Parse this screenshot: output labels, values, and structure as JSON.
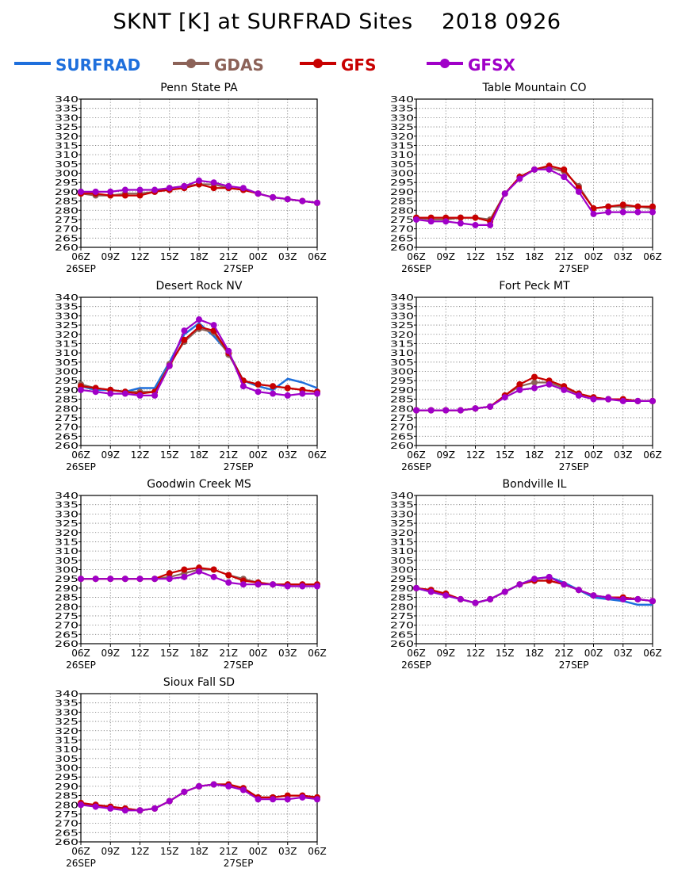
{
  "page": {
    "title": "SKNT [K] at SURFRAD Sites    2018 0926"
  },
  "legend": [
    {
      "name": "SURFRAD",
      "color": "#1e6fdc",
      "marker": false
    },
    {
      "name": "GDAS",
      "color": "#8c6258",
      "marker": true
    },
    {
      "name": "GFS",
      "color": "#c80000",
      "marker": true
    },
    {
      "name": "GFSX",
      "color": "#a000c8",
      "marker": true
    }
  ],
  "chart_data": [
    {
      "type": "line",
      "title": "Penn State PA",
      "x_ticks": [
        "06Z",
        "09Z",
        "12Z",
        "15Z",
        "18Z",
        "21Z",
        "00Z",
        "03Z",
        "06Z"
      ],
      "date_labels": [
        "26SEP",
        "27SEP"
      ],
      "ylim": [
        260,
        340
      ],
      "y_ticks": [
        260,
        265,
        270,
        275,
        280,
        285,
        290,
        295,
        300,
        305,
        310,
        315,
        320,
        325,
        330,
        335,
        340
      ],
      "grid": true,
      "x_hours": [
        0,
        1.5,
        3,
        4.5,
        6,
        7.5,
        9,
        10.5,
        12,
        13.5,
        15,
        16.5,
        18,
        19.5,
        21,
        22.5,
        24
      ],
      "series": [
        {
          "name": "SURFRAD",
          "values": []
        },
        {
          "name": "GDAS",
          "values": [
            289,
            288,
            288,
            289,
            289,
            290,
            292,
            293,
            294,
            294,
            292,
            291,
            289,
            287,
            286,
            285,
            284
          ]
        },
        {
          "name": "GFS",
          "values": [
            289,
            289,
            288,
            288,
            288,
            290,
            291,
            292,
            294,
            292,
            292,
            291,
            289,
            287,
            286,
            285,
            284
          ]
        },
        {
          "name": "GFSX",
          "values": [
            290,
            290,
            290,
            291,
            291,
            291,
            292,
            293,
            296,
            295,
            293,
            292,
            289,
            287,
            286,
            285,
            284
          ]
        }
      ]
    },
    {
      "type": "line",
      "title": "Table Mountain CO",
      "x_ticks": [
        "06Z",
        "09Z",
        "12Z",
        "15Z",
        "18Z",
        "21Z",
        "00Z",
        "03Z",
        "06Z"
      ],
      "date_labels": [
        "26SEP",
        "27SEP"
      ],
      "ylim": [
        260,
        340
      ],
      "y_ticks": [
        260,
        265,
        270,
        275,
        280,
        285,
        290,
        295,
        300,
        305,
        310,
        315,
        320,
        325,
        330,
        335,
        340
      ],
      "grid": true,
      "x_hours": [
        0,
        1.5,
        3,
        4.5,
        6,
        7.5,
        9,
        10.5,
        12,
        13.5,
        15,
        16.5,
        18,
        19.5,
        21,
        22.5,
        24
      ],
      "series": [
        {
          "name": "SURFRAD",
          "values": []
        },
        {
          "name": "GDAS",
          "values": [
            276,
            275,
            275,
            276,
            276,
            275,
            289,
            298,
            302,
            303,
            301,
            293,
            281,
            282,
            282,
            282,
            281
          ]
        },
        {
          "name": "GFS",
          "values": [
            276,
            276,
            276,
            276,
            276,
            274,
            289,
            298,
            302,
            304,
            302,
            292,
            281,
            282,
            283,
            282,
            282
          ]
        },
        {
          "name": "GFSX",
          "values": [
            275,
            274,
            274,
            273,
            272,
            272,
            289,
            297,
            302,
            302,
            298,
            290,
            278,
            279,
            279,
            279,
            279
          ]
        }
      ]
    },
    {
      "type": "line",
      "title": "Desert Rock NV",
      "x_ticks": [
        "06Z",
        "09Z",
        "12Z",
        "15Z",
        "18Z",
        "21Z",
        "00Z",
        "03Z",
        "06Z"
      ],
      "date_labels": [
        "26SEP",
        "27SEP"
      ],
      "ylim": [
        260,
        340
      ],
      "y_ticks": [
        260,
        265,
        270,
        275,
        280,
        285,
        290,
        295,
        300,
        305,
        310,
        315,
        320,
        325,
        330,
        335,
        340
      ],
      "grid": true,
      "x_hours": [
        0,
        1.5,
        3,
        4.5,
        6,
        7.5,
        9,
        10.5,
        12,
        13.5,
        15,
        16.5,
        18,
        19.5,
        21,
        22.5,
        24
      ],
      "series": [
        {
          "name": "SURFRAD",
          "values": [
            292,
            290,
            290,
            289,
            291,
            291,
            305,
            320,
            326,
            319,
            310,
            295,
            292,
            290,
            296,
            294,
            291
          ]
        },
        {
          "name": "GDAS",
          "values": [
            293,
            291,
            290,
            289,
            289,
            289,
            304,
            316,
            323,
            321,
            309,
            295,
            293,
            292,
            291,
            290,
            289
          ]
        },
        {
          "name": "GFS",
          "values": [
            292,
            291,
            290,
            289,
            288,
            289,
            303,
            317,
            324,
            322,
            310,
            295,
            293,
            292,
            291,
            290,
            289
          ]
        },
        {
          "name": "GFSX",
          "values": [
            290,
            289,
            288,
            288,
            287,
            287,
            303,
            322,
            328,
            325,
            311,
            292,
            289,
            288,
            287,
            288,
            288
          ]
        }
      ]
    },
    {
      "type": "line",
      "title": "Fort Peck MT",
      "x_ticks": [
        "06Z",
        "09Z",
        "12Z",
        "15Z",
        "18Z",
        "21Z",
        "00Z",
        "03Z",
        "06Z"
      ],
      "date_labels": [
        "26SEP",
        "27SEP"
      ],
      "ylim": [
        260,
        340
      ],
      "y_ticks": [
        260,
        265,
        270,
        275,
        280,
        285,
        290,
        295,
        300,
        305,
        310,
        315,
        320,
        325,
        330,
        335,
        340
      ],
      "grid": true,
      "x_hours": [
        0,
        1.5,
        3,
        4.5,
        6,
        7.5,
        9,
        10.5,
        12,
        13.5,
        15,
        16.5,
        18,
        19.5,
        21,
        22.5,
        24
      ],
      "series": [
        {
          "name": "SURFRAD",
          "values": []
        },
        {
          "name": "GDAS",
          "values": [
            279,
            279,
            279,
            279,
            280,
            281,
            287,
            292,
            294,
            294,
            291,
            288,
            286,
            285,
            285,
            284,
            284
          ]
        },
        {
          "name": "GFS",
          "values": [
            279,
            279,
            279,
            279,
            280,
            281,
            287,
            293,
            297,
            295,
            292,
            288,
            286,
            285,
            285,
            284,
            284
          ]
        },
        {
          "name": "GFSX",
          "values": [
            279,
            279,
            279,
            279,
            280,
            281,
            286,
            290,
            291,
            293,
            290,
            287,
            285,
            285,
            284,
            284,
            284
          ]
        }
      ]
    },
    {
      "type": "line",
      "title": "Goodwin Creek MS",
      "x_ticks": [
        "06Z",
        "09Z",
        "12Z",
        "15Z",
        "18Z",
        "21Z",
        "00Z",
        "03Z",
        "06Z"
      ],
      "date_labels": [
        "26SEP",
        "27SEP"
      ],
      "ylim": [
        260,
        340
      ],
      "y_ticks": [
        260,
        265,
        270,
        275,
        280,
        285,
        290,
        295,
        300,
        305,
        310,
        315,
        320,
        325,
        330,
        335,
        340
      ],
      "grid": true,
      "x_hours": [
        0,
        1.5,
        3,
        4.5,
        6,
        7.5,
        9,
        10.5,
        12,
        13.5,
        15,
        16.5,
        18,
        19.5,
        21,
        22.5,
        24
      ],
      "series": [
        {
          "name": "SURFRAD",
          "values": []
        },
        {
          "name": "GDAS",
          "values": [
            295,
            295,
            295,
            295,
            295,
            295,
            296,
            298,
            300,
            300,
            297,
            295,
            293,
            292,
            292,
            292,
            292
          ]
        },
        {
          "name": "GFS",
          "values": [
            295,
            295,
            295,
            295,
            295,
            295,
            298,
            300,
            301,
            300,
            297,
            294,
            293,
            292,
            292,
            292,
            292
          ]
        },
        {
          "name": "GFSX",
          "values": [
            295,
            295,
            295,
            295,
            295,
            295,
            295,
            296,
            299,
            296,
            293,
            292,
            292,
            292,
            291,
            291,
            291
          ]
        }
      ]
    },
    {
      "type": "line",
      "title": "Bondville IL",
      "x_ticks": [
        "06Z",
        "09Z",
        "12Z",
        "15Z",
        "18Z",
        "21Z",
        "00Z",
        "03Z",
        "06Z"
      ],
      "date_labels": [
        "26SEP",
        "27SEP"
      ],
      "ylim": [
        260,
        340
      ],
      "y_ticks": [
        260,
        265,
        270,
        275,
        280,
        285,
        290,
        295,
        300,
        305,
        310,
        315,
        320,
        325,
        330,
        335,
        340
      ],
      "grid": true,
      "x_hours": [
        0,
        1.5,
        3,
        4.5,
        6,
        7.5,
        9,
        10.5,
        12,
        13.5,
        15,
        16.5,
        18,
        19.5,
        21,
        22.5,
        24
      ],
      "series": [
        {
          "name": "SURFRAD",
          "values": [
            290,
            288,
            286,
            284,
            282,
            284,
            288,
            292,
            295,
            296,
            293,
            289,
            285,
            284,
            283,
            281,
            281
          ]
        },
        {
          "name": "GDAS",
          "values": [
            290,
            289,
            287,
            284,
            282,
            284,
            288,
            292,
            294,
            294,
            292,
            289,
            286,
            285,
            284,
            284,
            283
          ]
        },
        {
          "name": "GFS",
          "values": [
            290,
            289,
            287,
            284,
            282,
            284,
            288,
            292,
            294,
            294,
            292,
            289,
            286,
            285,
            285,
            284,
            283
          ]
        },
        {
          "name": "GFSX",
          "values": [
            290,
            288,
            286,
            284,
            282,
            284,
            288,
            292,
            295,
            296,
            292,
            289,
            286,
            285,
            284,
            284,
            283
          ]
        }
      ]
    },
    {
      "type": "line",
      "title": "Sioux Fall SD",
      "x_ticks": [
        "06Z",
        "09Z",
        "12Z",
        "15Z",
        "18Z",
        "21Z",
        "00Z",
        "03Z",
        "06Z"
      ],
      "date_labels": [
        "26SEP",
        "27SEP"
      ],
      "ylim": [
        260,
        340
      ],
      "y_ticks": [
        260,
        265,
        270,
        275,
        280,
        285,
        290,
        295,
        300,
        305,
        310,
        315,
        320,
        325,
        330,
        335,
        340
      ],
      "grid": true,
      "x_hours": [
        0,
        1.5,
        3,
        4.5,
        6,
        7.5,
        9,
        10.5,
        12,
        13.5,
        15,
        16.5,
        18,
        19.5,
        21,
        22.5,
        24
      ],
      "series": [
        {
          "name": "SURFRAD",
          "values": []
        },
        {
          "name": "GDAS",
          "values": [
            280,
            280,
            279,
            278,
            277,
            278,
            282,
            287,
            290,
            291,
            291,
            289,
            284,
            284,
            285,
            285,
            284
          ]
        },
        {
          "name": "GFS",
          "values": [
            281,
            280,
            279,
            278,
            277,
            278,
            282,
            287,
            290,
            291,
            291,
            289,
            284,
            284,
            285,
            285,
            284
          ]
        },
        {
          "name": "GFSX",
          "values": [
            280,
            279,
            278,
            277,
            277,
            278,
            282,
            287,
            290,
            291,
            290,
            288,
            283,
            283,
            283,
            284,
            283
          ]
        }
      ]
    }
  ]
}
